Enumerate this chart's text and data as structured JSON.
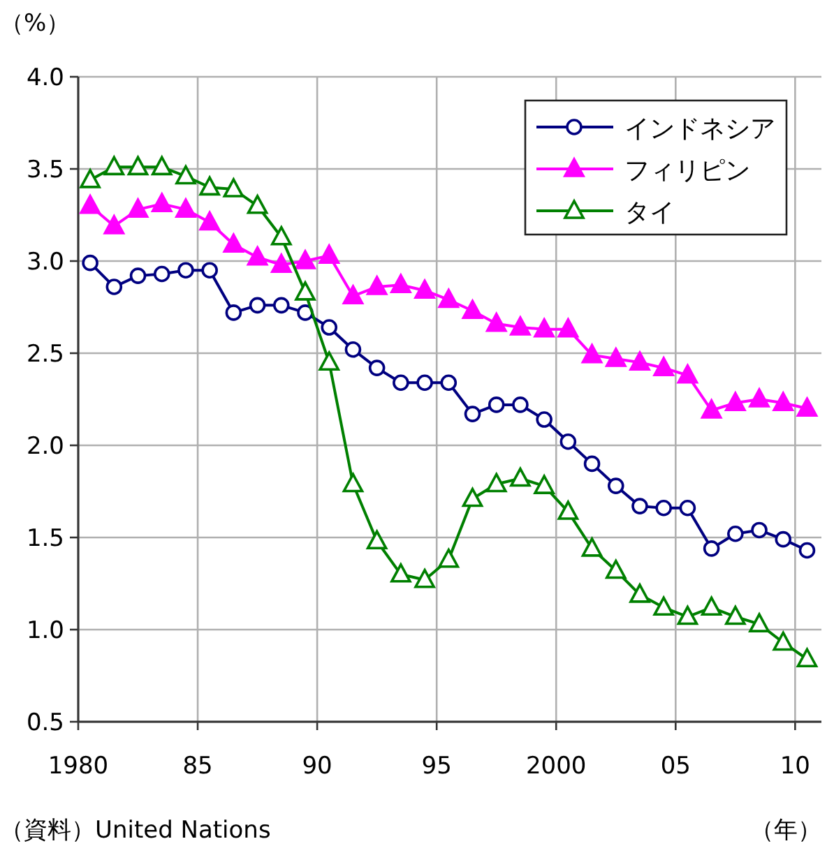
{
  "chart_data": {
    "type": "line",
    "ylabel": "（%）",
    "xlabel": "（年）",
    "annotations": [
      "（資料）United Nations"
    ],
    "x": [
      1980.5,
      1981.5,
      1982.5,
      1983.5,
      1984.5,
      1985.5,
      1986.5,
      1987.5,
      1988.5,
      1989.5,
      1990.5,
      1991.5,
      1992.5,
      1993.5,
      1994.5,
      1995.5,
      1996.5,
      1997.5,
      1998.5,
      1999.5,
      2000.5,
      2001.5,
      2002.5,
      2003.5,
      2004.5,
      2005.5,
      2006.5,
      2007.5,
      2008.5,
      2009.5,
      2010.5
    ],
    "series": [
      {
        "name": "インドネシア",
        "color": "#000080",
        "marker": "circle",
        "values": [
          2.99,
          2.86,
          2.92,
          2.93,
          2.95,
          2.95,
          2.72,
          2.76,
          2.76,
          2.72,
          2.64,
          2.52,
          2.42,
          2.34,
          2.34,
          2.34,
          2.17,
          2.22,
          2.22,
          2.14,
          2.02,
          1.9,
          1.78,
          1.67,
          1.66,
          1.66,
          1.44,
          1.52,
          1.54,
          1.49,
          1.43
        ]
      },
      {
        "name": "フィリピン",
        "color": "#ff00ff",
        "marker": "triangle",
        "values": [
          3.3,
          3.19,
          3.28,
          3.31,
          3.28,
          3.21,
          3.09,
          3.02,
          2.98,
          3.0,
          3.03,
          2.81,
          2.86,
          2.87,
          2.84,
          2.79,
          2.73,
          2.66,
          2.64,
          2.63,
          2.63,
          2.49,
          2.47,
          2.45,
          2.42,
          2.38,
          2.19,
          2.23,
          2.25,
          2.23,
          2.2
        ]
      },
      {
        "name": "タイ",
        "color": "#008000",
        "marker": "triangle",
        "values": [
          3.44,
          3.51,
          3.51,
          3.51,
          3.46,
          3.4,
          3.39,
          3.3,
          3.13,
          2.83,
          2.45,
          1.79,
          1.48,
          1.3,
          1.27,
          1.38,
          1.71,
          1.79,
          1.82,
          1.78,
          1.64,
          1.44,
          1.32,
          1.19,
          1.12,
          1.07,
          1.12,
          1.07,
          1.03,
          0.93,
          0.84
        ]
      }
    ],
    "xlim": [
      1980,
      2011.1
    ],
    "xticks": [
      {
        "value": 1980,
        "label": "1980"
      },
      {
        "value": 1985,
        "label": "85"
      },
      {
        "value": 1990,
        "label": "90"
      },
      {
        "value": 1995,
        "label": "95"
      },
      {
        "value": 2000,
        "label": "2000"
      },
      {
        "value": 2005,
        "label": "05"
      },
      {
        "value": 2010,
        "label": "10"
      }
    ],
    "ylim": [
      0.5,
      4.0
    ],
    "yticks": [
      {
        "value": 0.5,
        "label": "0.5"
      },
      {
        "value": 1.0,
        "label": "1.0"
      },
      {
        "value": 1.5,
        "label": "1.5"
      },
      {
        "value": 2.0,
        "label": "2.0"
      },
      {
        "value": 2.5,
        "label": "2.5"
      },
      {
        "value": 3.0,
        "label": "3.0"
      },
      {
        "value": 3.5,
        "label": "3.5"
      },
      {
        "value": 4.0,
        "label": "4.0"
      }
    ],
    "grid": true,
    "legend": "top right",
    "line_style": "solid"
  }
}
